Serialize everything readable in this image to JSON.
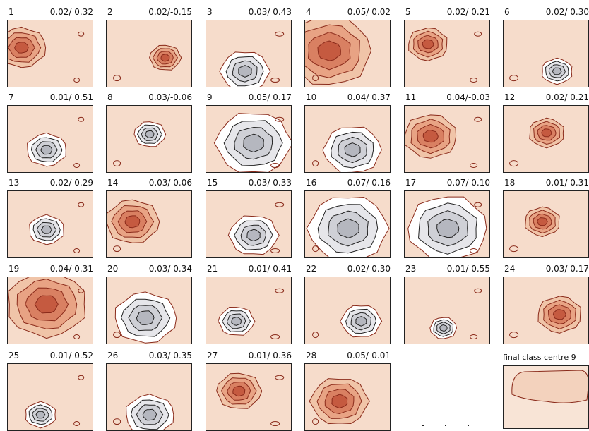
{
  "chart_data": {
    "type": "heatmap",
    "description_of_values": "per-panel header pair as printed",
    "panels": [
      {
        "index": "1",
        "stats": "0.02/ 0.32",
        "pos": [
          0.16,
          0.4
        ],
        "size": 0.55,
        "center": "red"
      },
      {
        "index": "2",
        "stats": "0.02/-0.15",
        "pos": [
          0.68,
          0.55
        ],
        "size": 0.35,
        "center": "red"
      },
      {
        "index": "3",
        "stats": "0.03/ 0.43",
        "pos": [
          0.45,
          0.75
        ],
        "size": 0.55,
        "center": "grey"
      },
      {
        "index": "4",
        "stats": "0.05/ 0.02",
        "pos": [
          0.28,
          0.45
        ],
        "size": 0.95,
        "center": "red"
      },
      {
        "index": "5",
        "stats": "0.02/ 0.21",
        "pos": [
          0.27,
          0.35
        ],
        "size": 0.45,
        "center": "red"
      },
      {
        "index": "6",
        "stats": "0.02/ 0.30",
        "pos": [
          0.62,
          0.75
        ],
        "size": 0.35,
        "center": "grey"
      },
      {
        "index": "7",
        "stats": "0.01/ 0.51",
        "pos": [
          0.45,
          0.65
        ],
        "size": 0.45,
        "center": "grey"
      },
      {
        "index": "8",
        "stats": "0.03/-0.06",
        "pos": [
          0.5,
          0.42
        ],
        "size": 0.35,
        "center": "grey"
      },
      {
        "index": "9",
        "stats": "0.05/ 0.17",
        "pos": [
          0.55,
          0.55
        ],
        "size": 0.85,
        "center": "grey"
      },
      {
        "index": "10",
        "stats": "0.04/ 0.37",
        "pos": [
          0.55,
          0.65
        ],
        "size": 0.65,
        "center": "grey"
      },
      {
        "index": "11",
        "stats": "0.04/-0.03",
        "pos": [
          0.3,
          0.45
        ],
        "size": 0.6,
        "center": "red"
      },
      {
        "index": "12",
        "stats": "0.02/ 0.21",
        "pos": [
          0.5,
          0.4
        ],
        "size": 0.4,
        "center": "red"
      },
      {
        "index": "13",
        "stats": "0.02/ 0.29",
        "pos": [
          0.45,
          0.57
        ],
        "size": 0.4,
        "center": "grey"
      },
      {
        "index": "14",
        "stats": "0.03/ 0.06",
        "pos": [
          0.3,
          0.45
        ],
        "size": 0.6,
        "center": "red"
      },
      {
        "index": "15",
        "stats": "0.03/ 0.33",
        "pos": [
          0.55,
          0.65
        ],
        "size": 0.55,
        "center": "grey"
      },
      {
        "index": "16",
        "stats": "0.07/ 0.16",
        "pos": [
          0.5,
          0.55
        ],
        "size": 0.9,
        "center": "grey"
      },
      {
        "index": "17",
        "stats": "0.07/ 0.10",
        "pos": [
          0.5,
          0.55
        ],
        "size": 0.9,
        "center": "grey"
      },
      {
        "index": "18",
        "stats": "0.01/ 0.31",
        "pos": [
          0.45,
          0.45
        ],
        "size": 0.4,
        "center": "red"
      },
      {
        "index": "19",
        "stats": "0.04/ 0.31",
        "pos": [
          0.45,
          0.4
        ],
        "size": 0.9,
        "center": "red"
      },
      {
        "index": "20",
        "stats": "0.03/ 0.34",
        "pos": [
          0.45,
          0.6
        ],
        "size": 0.7,
        "center": "grey"
      },
      {
        "index": "21",
        "stats": "0.01/ 0.41",
        "pos": [
          0.35,
          0.65
        ],
        "size": 0.4,
        "center": "grey"
      },
      {
        "index": "22",
        "stats": "0.02/ 0.30",
        "pos": [
          0.65,
          0.65
        ],
        "size": 0.45,
        "center": "grey"
      },
      {
        "index": "23",
        "stats": "0.01/ 0.55",
        "pos": [
          0.45,
          0.75
        ],
        "size": 0.3,
        "center": "grey"
      },
      {
        "index": "24",
        "stats": "0.03/ 0.17",
        "pos": [
          0.65,
          0.55
        ],
        "size": 0.5,
        "center": "red"
      },
      {
        "index": "25",
        "stats": "0.01/ 0.52",
        "pos": [
          0.38,
          0.75
        ],
        "size": 0.35,
        "center": "grey"
      },
      {
        "index": "26",
        "stats": "0.03/ 0.35",
        "pos": [
          0.5,
          0.75
        ],
        "size": 0.55,
        "center": "grey"
      },
      {
        "index": "27",
        "stats": "0.01/ 0.36",
        "pos": [
          0.38,
          0.4
        ],
        "size": 0.5,
        "center": "red"
      },
      {
        "index": "28",
        "stats": "0.05/-0.01",
        "pos": [
          0.4,
          0.55
        ],
        "size": 0.65,
        "center": "red"
      }
    ],
    "final_panel": {
      "title": "final class centre 9"
    }
  },
  "colors": {
    "background_map": "#f6dccb",
    "red_levels": [
      "#f0c4a8",
      "#e8a384",
      "#d98062",
      "#c55a40"
    ],
    "grey_levels": [
      "#ffffff",
      "#e6e6ea",
      "#cfd0d6",
      "#b5b7bf"
    ],
    "contour_red": "#8a2a1a",
    "contour_dark": "#222222"
  }
}
